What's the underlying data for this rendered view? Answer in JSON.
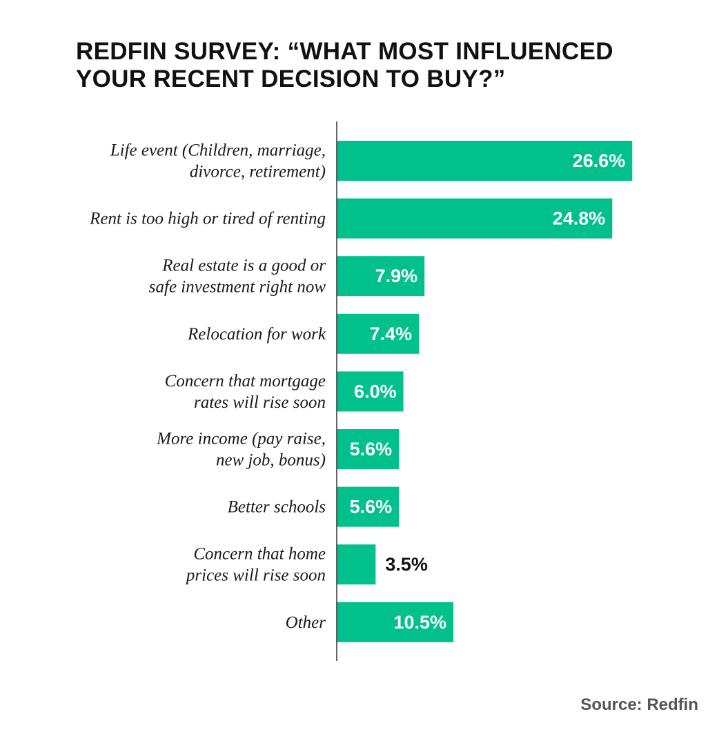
{
  "title_lines": [
    "REDFIN SURVEY: “WHAT MOST INFLUENCED",
    "YOUR RECENT DECISION TO BUY?”"
  ],
  "source": "Source: Redfin",
  "colors": {
    "bar": "#00c08b",
    "inside_label": "#ffffff",
    "outside_label": "#111111",
    "axis": "#333333"
  },
  "chart_data": {
    "type": "bar",
    "orientation": "horizontal",
    "title": "REDFIN SURVEY: “WHAT MOST INFLUENCED YOUR RECENT DECISION TO BUY?”",
    "xlabel": "",
    "ylabel": "",
    "xlim": [
      0,
      30
    ],
    "categories": [
      [
        "Life event (Children, marriage,",
        "divorce, retirement)"
      ],
      [
        "Rent is too high or tired of renting"
      ],
      [
        "Real estate is a good or",
        "safe investment right now"
      ],
      [
        "Relocation for work"
      ],
      [
        "Concern that mortgage",
        "rates will rise soon"
      ],
      [
        "More income (pay raise,",
        "new job, bonus)"
      ],
      [
        "Better schools"
      ],
      [
        "Concern that home",
        "prices will rise soon"
      ],
      [
        "Other"
      ]
    ],
    "values": [
      26.6,
      24.8,
      7.9,
      7.4,
      6.0,
      5.6,
      5.6,
      3.5,
      10.5
    ],
    "value_labels": [
      "26.6%",
      "24.8%",
      "7.9%",
      "7.4%",
      "6.0%",
      "5.6%",
      "5.6%",
      "3.5%",
      "10.5%"
    ]
  }
}
